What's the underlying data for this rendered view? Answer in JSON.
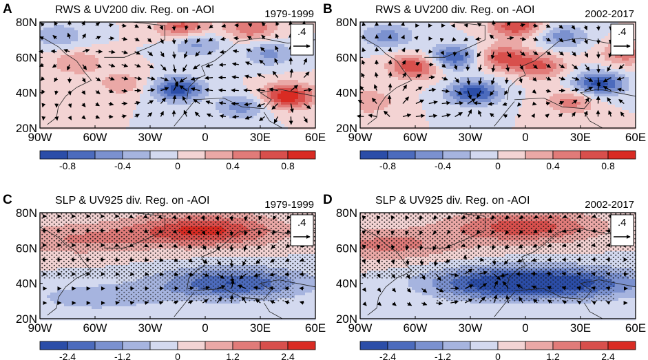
{
  "figure": {
    "panels": [
      {
        "letter": "A",
        "title": "RWS & UV200 div. Reg. on -AOI",
        "period": "1979-1999",
        "field": "rws",
        "stippled": false,
        "reference_vector": ".4",
        "x_ticks": [
          "90W",
          "60W",
          "30W",
          "0",
          "30E",
          "60E"
        ],
        "y_ticks": [
          "80N",
          "60N",
          "40N",
          "20N"
        ],
        "colorbar_labels": [
          "-0.8",
          "-0.4",
          "0",
          "0.4",
          "0.8"
        ]
      },
      {
        "letter": "B",
        "title": "RWS & UV200 div. Reg. on -AOI",
        "period": "2002-2017",
        "field": "rws",
        "stippled": false,
        "reference_vector": ".4",
        "x_ticks": [
          "90W",
          "60W",
          "30W",
          "0",
          "30E",
          "60E"
        ],
        "y_ticks": [
          "80N",
          "60N",
          "40N",
          "20N"
        ],
        "colorbar_labels": [
          "-0.8",
          "-0.4",
          "0",
          "0.4",
          "0.8"
        ]
      },
      {
        "letter": "C",
        "title": "SLP & UV925 div. Reg. on -AOI",
        "period": "1979-1999",
        "field": "slp",
        "stippled": true,
        "reference_vector": ".4",
        "x_ticks": [
          "90W",
          "60W",
          "30W",
          "0",
          "30E",
          "60E"
        ],
        "y_ticks": [
          "80N",
          "60N",
          "40N",
          "20N"
        ],
        "colorbar_labels": [
          "-2.4",
          "-1.2",
          "0",
          "1.2",
          "2.4"
        ]
      },
      {
        "letter": "D",
        "title": "SLP & UV925 div. Reg. on -AOI",
        "period": "2002-2017",
        "field": "slp",
        "stippled": true,
        "reference_vector": ".4",
        "x_ticks": [
          "90W",
          "60W",
          "30W",
          "0",
          "30E",
          "60E"
        ],
        "y_ticks": [
          "80N",
          "60N",
          "40N",
          "20N"
        ],
        "colorbar_labels": [
          "-2.4",
          "-1.2",
          "0",
          "1.2",
          "2.4"
        ]
      }
    ]
  },
  "chart_data": [
    {
      "type": "heatmap",
      "panel": "A",
      "title": "RWS & UV200 div. Reg. on -AOI",
      "period": "1979-1999",
      "x_range": [
        -90,
        60
      ],
      "x_units": "degrees longitude",
      "y_range": [
        20,
        80
      ],
      "y_units": "degrees latitude",
      "x_ticks": [
        -90,
        -60,
        -30,
        0,
        30,
        60
      ],
      "y_ticks": [
        20,
        40,
        60,
        80
      ],
      "colorbar_levels": [
        -1.0,
        -0.8,
        -0.6,
        -0.4,
        -0.2,
        0,
        0.2,
        0.4,
        0.6,
        0.8,
        1.0
      ],
      "colorbar_tick_labels": [
        "-0.8",
        "-0.4",
        "0",
        "0.4",
        "0.8"
      ],
      "colors": [
        "#2b4da8",
        "#4c6bbd",
        "#7b91cf",
        "#a6b4df",
        "#d3d9ef",
        "#f3d3d3",
        "#eaa8a6",
        "#e17b79",
        "#d84f4c",
        "#d92b23"
      ],
      "features": [
        {
          "type": "positive",
          "lon": 45,
          "lat": 38,
          "value": 1.0
        },
        {
          "type": "positive",
          "lon": -12,
          "lat": 77,
          "value": 0.7
        },
        {
          "type": "positive",
          "lon": 25,
          "lat": 77,
          "value": 0.6
        },
        {
          "type": "positive",
          "lon": -70,
          "lat": 57,
          "value": 0.4
        },
        {
          "type": "positive",
          "lon": -45,
          "lat": 45,
          "value": 0.35
        },
        {
          "type": "negative",
          "lon": -15,
          "lat": 42,
          "value": -0.9
        },
        {
          "type": "negative",
          "lon": -5,
          "lat": 68,
          "value": -0.5
        },
        {
          "type": "negative",
          "lon": 35,
          "lat": 62,
          "value": -0.45
        },
        {
          "type": "negative",
          "lon": 20,
          "lat": 32,
          "value": -0.5
        },
        {
          "type": "negative",
          "lon": -80,
          "lat": 72,
          "value": -0.4
        }
      ],
      "vectors": [
        {
          "lon": -15,
          "lat": 45,
          "kind": "convergence",
          "strength": 1.0
        },
        {
          "lon": 45,
          "lat": 40,
          "kind": "divergence",
          "strength": 1.0
        },
        {
          "lon": -70,
          "lat": 62,
          "kind": "divergence",
          "strength": 0.5
        }
      ],
      "reference_vector": 0.4
    },
    {
      "type": "heatmap",
      "panel": "B",
      "title": "RWS & UV200 div. Reg. on -AOI",
      "period": "2002-2017",
      "x_range": [
        -90,
        60
      ],
      "x_units": "degrees longitude",
      "y_range": [
        20,
        80
      ],
      "y_units": "degrees latitude",
      "x_ticks": [
        -90,
        -60,
        -30,
        0,
        30,
        60
      ],
      "y_ticks": [
        20,
        40,
        60,
        80
      ],
      "colorbar_levels": [
        -1.0,
        -0.8,
        -0.6,
        -0.4,
        -0.2,
        0,
        0.2,
        0.4,
        0.6,
        0.8,
        1.0
      ],
      "colorbar_tick_labels": [
        "-0.8",
        "-0.4",
        "0",
        "0.4",
        "0.8"
      ],
      "colors": [
        "#2b4da8",
        "#4c6bbd",
        "#7b91cf",
        "#a6b4df",
        "#d3d9ef",
        "#f3d3d3",
        "#eaa8a6",
        "#e17b79",
        "#d84f4c",
        "#d92b23"
      ],
      "features": [
        {
          "type": "positive",
          "lon": -60,
          "lat": 55,
          "value": 0.8
        },
        {
          "type": "positive",
          "lon": -12,
          "lat": 60,
          "value": 0.7
        },
        {
          "type": "positive",
          "lon": 8,
          "lat": 55,
          "value": 0.6
        },
        {
          "type": "positive",
          "lon": -5,
          "lat": 78,
          "value": 0.8
        },
        {
          "type": "positive",
          "lon": 25,
          "lat": 35,
          "value": 0.5
        },
        {
          "type": "positive",
          "lon": -85,
          "lat": 35,
          "value": 0.4
        },
        {
          "type": "positive",
          "lon": 55,
          "lat": 62,
          "value": 0.5
        },
        {
          "type": "negative",
          "lon": -40,
          "lat": 60,
          "value": -0.8
        },
        {
          "type": "negative",
          "lon": -28,
          "lat": 40,
          "value": -0.9
        },
        {
          "type": "negative",
          "lon": 40,
          "lat": 45,
          "value": -0.9
        },
        {
          "type": "negative",
          "lon": -75,
          "lat": 72,
          "value": -0.5
        },
        {
          "type": "negative",
          "lon": 20,
          "lat": 72,
          "value": -0.5
        }
      ],
      "vectors": [
        {
          "lon": -72,
          "lat": 25,
          "kind": "divergence",
          "strength": 1.0
        },
        {
          "lon": -30,
          "lat": 35,
          "kind": "convergence",
          "strength": 0.8
        },
        {
          "lon": 40,
          "lat": 45,
          "kind": "convergence",
          "strength": 0.9
        },
        {
          "lon": -15,
          "lat": 68,
          "kind": "divergence",
          "strength": 0.5
        }
      ],
      "reference_vector": 0.4
    },
    {
      "type": "heatmap",
      "panel": "C",
      "title": "SLP & UV925 div. Reg. on -AOI",
      "period": "1979-1999",
      "x_range": [
        -90,
        60
      ],
      "x_units": "degrees longitude",
      "y_range": [
        20,
        80
      ],
      "y_units": "degrees latitude",
      "x_ticks": [
        -90,
        -60,
        -30,
        0,
        30,
        60
      ],
      "y_ticks": [
        20,
        40,
        60,
        80
      ],
      "colorbar_levels": [
        -3.0,
        -2.4,
        -1.8,
        -1.2,
        -0.6,
        0,
        0.6,
        1.2,
        1.8,
        2.4,
        3.0
      ],
      "colorbar_tick_labels": [
        "-2.4",
        "-1.2",
        "0",
        "1.2",
        "2.4"
      ],
      "colors": [
        "#2b4da8",
        "#4c6bbd",
        "#7b91cf",
        "#a6b4df",
        "#d3d9ef",
        "#f3d3d3",
        "#eaa8a6",
        "#e17b79",
        "#d84f4c",
        "#d92b23"
      ],
      "features": [
        {
          "type": "positive",
          "lon": 0,
          "lat": 70,
          "value": 2.6
        },
        {
          "type": "positive",
          "lon": -70,
          "lat": 65,
          "value": 1.2
        },
        {
          "type": "negative",
          "lon": 15,
          "lat": 40,
          "value": -2.4
        },
        {
          "type": "negative",
          "lon": -60,
          "lat": 32,
          "value": -0.9
        }
      ],
      "vectors": [
        {
          "lon": 15,
          "lat": 40,
          "kind": "convergence",
          "strength": 0.9
        }
      ],
      "stippling": "significant regions marked by dots",
      "reference_vector": 0.4
    },
    {
      "type": "heatmap",
      "panel": "D",
      "title": "SLP & UV925 div. Reg. on -AOI",
      "period": "2002-2017",
      "x_range": [
        -90,
        60
      ],
      "x_units": "degrees longitude",
      "y_range": [
        20,
        80
      ],
      "y_units": "degrees latitude",
      "x_ticks": [
        -90,
        -60,
        -30,
        0,
        30,
        60
      ],
      "y_ticks": [
        20,
        40,
        60,
        80
      ],
      "colorbar_levels": [
        -3.0,
        -2.4,
        -1.8,
        -1.2,
        -0.6,
        0,
        0.6,
        1.2,
        1.8,
        2.4,
        3.0
      ],
      "colorbar_tick_labels": [
        "-2.4",
        "-1.2",
        "0",
        "1.2",
        "2.4"
      ],
      "colors": [
        "#2b4da8",
        "#4c6bbd",
        "#7b91cf",
        "#a6b4df",
        "#d3d9ef",
        "#f3d3d3",
        "#eaa8a6",
        "#e17b79",
        "#d84f4c",
        "#d92b23"
      ],
      "features": [
        {
          "type": "positive",
          "lon": 0,
          "lat": 72,
          "value": 2.2
        },
        {
          "type": "positive",
          "lon": -75,
          "lat": 62,
          "value": 1.4
        },
        {
          "type": "negative",
          "lon": -15,
          "lat": 40,
          "value": -2.6
        },
        {
          "type": "negative",
          "lon": 30,
          "lat": 40,
          "value": -2.0
        }
      ],
      "vectors": [
        {
          "lon": -15,
          "lat": 42,
          "kind": "convergence",
          "strength": 0.9
        },
        {
          "lon": -40,
          "lat": 48,
          "kind": "cyclonic",
          "strength": 0.7
        }
      ],
      "stippling": "significant regions marked by dots",
      "reference_vector": 0.4
    }
  ]
}
